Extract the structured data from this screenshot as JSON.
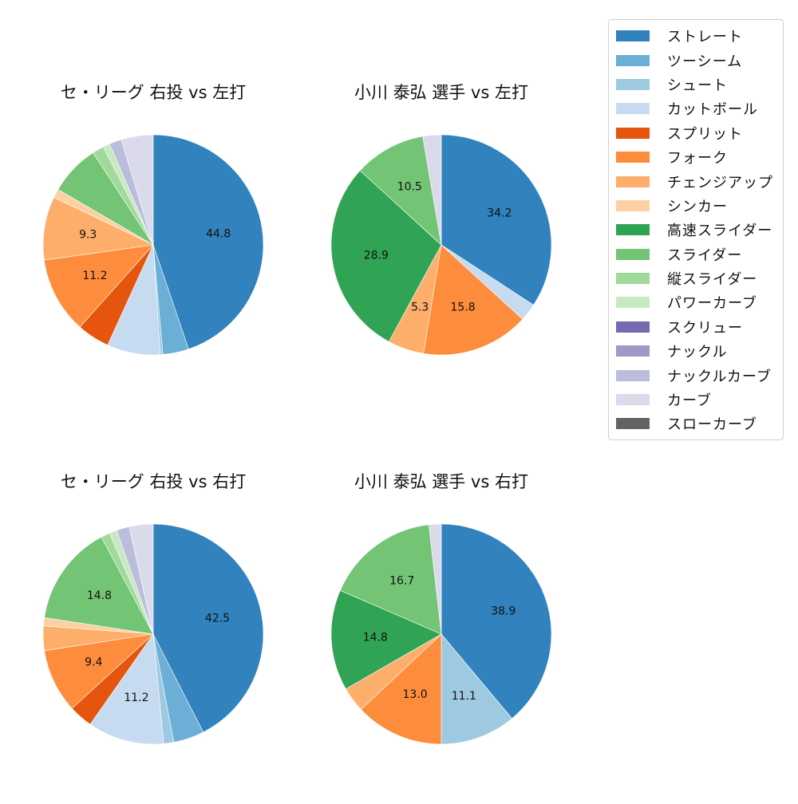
{
  "legend": {
    "items": [
      {
        "label": "ストレート",
        "color": "#3182bd"
      },
      {
        "label": "ツーシーム",
        "color": "#6baed6"
      },
      {
        "label": "シュート",
        "color": "#9ecae1"
      },
      {
        "label": "カットボール",
        "color": "#c6dbef"
      },
      {
        "label": "スプリット",
        "color": "#e6550d"
      },
      {
        "label": "フォーク",
        "color": "#fd8d3c"
      },
      {
        "label": "チェンジアップ",
        "color": "#fdae6b"
      },
      {
        "label": "シンカー",
        "color": "#fdd0a2"
      },
      {
        "label": "高速スライダー",
        "color": "#31a354"
      },
      {
        "label": "スライダー",
        "color": "#74c476"
      },
      {
        "label": "縦スライダー",
        "color": "#a1d99b"
      },
      {
        "label": "パワーカーブ",
        "color": "#c7e9c0"
      },
      {
        "label": "スクリュー",
        "color": "#756bb1"
      },
      {
        "label": "ナックル",
        "color": "#9e9ac8"
      },
      {
        "label": "ナックルカーブ",
        "color": "#bcbddc"
      },
      {
        "label": "カーブ",
        "color": "#dadaeb"
      },
      {
        "label": "スローカーブ",
        "color": "#636363"
      }
    ]
  },
  "chart_data": [
    {
      "type": "pie",
      "title": "セ・リーグ 右投 vs 左打",
      "start_angle": 90,
      "direction": "clockwise",
      "label_threshold": 9,
      "slices": [
        {
          "label": "ストレート",
          "value": 44.8,
          "shown": true
        },
        {
          "label": "ツーシーム",
          "value": 3.8
        },
        {
          "label": "シュート",
          "value": 0.4
        },
        {
          "label": "カットボール",
          "value": 7.8
        },
        {
          "label": "スプリット",
          "value": 4.8
        },
        {
          "label": "フォーク",
          "value": 11.2,
          "shown": true
        },
        {
          "label": "チェンジアップ",
          "value": 9.3,
          "shown": true
        },
        {
          "label": "シンカー",
          "value": 1.3
        },
        {
          "label": "スライダー",
          "value": 7.4
        },
        {
          "label": "縦スライダー",
          "value": 1.7
        },
        {
          "label": "パワーカーブ",
          "value": 1.0
        },
        {
          "label": "ナックルカーブ",
          "value": 1.8
        },
        {
          "label": "カーブ",
          "value": 4.7
        }
      ]
    },
    {
      "type": "pie",
      "title": "小川 泰弘 選手 vs 左打",
      "start_angle": 90,
      "direction": "clockwise",
      "label_threshold": 5,
      "slices": [
        {
          "label": "ストレート",
          "value": 34.2,
          "shown": true
        },
        {
          "label": "カットボール",
          "value": 2.6
        },
        {
          "label": "フォーク",
          "value": 15.8,
          "shown": true
        },
        {
          "label": "チェンジアップ",
          "value": 5.3,
          "shown": true
        },
        {
          "label": "高速スライダー",
          "value": 28.9,
          "shown": true
        },
        {
          "label": "スライダー",
          "value": 10.5,
          "shown": true
        },
        {
          "label": "カーブ",
          "value": 2.7
        }
      ]
    },
    {
      "type": "pie",
      "title": "セ・リーグ 右投 vs 右打",
      "start_angle": 90,
      "direction": "clockwise",
      "label_threshold": 9,
      "slices": [
        {
          "label": "ストレート",
          "value": 42.5,
          "shown": true
        },
        {
          "label": "ツーシーム",
          "value": 4.5
        },
        {
          "label": "シュート",
          "value": 1.5
        },
        {
          "label": "カットボール",
          "value": 11.2,
          "shown": true
        },
        {
          "label": "スプリット",
          "value": 3.5
        },
        {
          "label": "フォーク",
          "value": 9.4,
          "shown": true
        },
        {
          "label": "チェンジアップ",
          "value": 3.6
        },
        {
          "label": "シンカー",
          "value": 1.2
        },
        {
          "label": "スライダー",
          "value": 14.8,
          "shown": true
        },
        {
          "label": "縦スライダー",
          "value": 1.3
        },
        {
          "label": "パワーカーブ",
          "value": 1.1
        },
        {
          "label": "ナックルカーブ",
          "value": 1.9
        },
        {
          "label": "カーブ",
          "value": 3.5
        }
      ]
    },
    {
      "type": "pie",
      "title": "小川 泰弘 選手 vs 右打",
      "start_angle": 90,
      "direction": "clockwise",
      "label_threshold": 5,
      "slices": [
        {
          "label": "ストレート",
          "value": 38.9,
          "shown": true
        },
        {
          "label": "シュート",
          "value": 11.1,
          "shown": true
        },
        {
          "label": "フォーク",
          "value": 13.0,
          "shown": true
        },
        {
          "label": "チェンジアップ",
          "value": 3.7
        },
        {
          "label": "高速スライダー",
          "value": 14.8,
          "shown": true
        },
        {
          "label": "スライダー",
          "value": 16.7,
          "shown": true
        },
        {
          "label": "カーブ",
          "value": 1.8
        }
      ]
    }
  ]
}
